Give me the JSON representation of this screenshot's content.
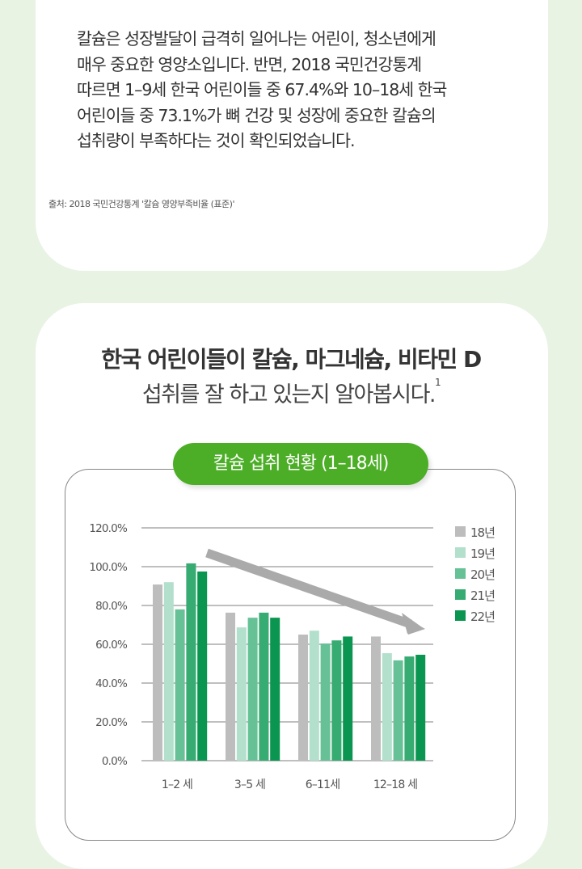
{
  "intro": {
    "lines": [
      "칼슘은 성장발달이 급격히 일어나는 어린이, 청소년에게",
      "매우 중요한 영양소입니다. 반면, 2018 국민건강통계",
      "따르면 1–9세 한국 어린이들 중 67.4%와 10–18세 한국",
      "어린이들 중 73.1%가 뼈 건강 및 성장에 중요한 칼슘의",
      "섭취량이 부족하다는 것이 확인되었습니다."
    ],
    "source": "출처: 2018 국민건강통계 '칼슘 영양부족비율 (표준)'"
  },
  "section": {
    "title_line1": "한국 어린이들이 칼슘, 마그네슘, 비타민 D",
    "title_line2": "섭취를 잘 하고 있는지 알아봅시다.",
    "footnote": "1"
  },
  "chart_data": {
    "type": "bar",
    "title": "칼슘 섭취 현황 (1–18세)",
    "categories": [
      "1–2 세",
      "3–5 세",
      "6–11세",
      "12–18 세"
    ],
    "ylim": [
      0,
      120
    ],
    "yticks": [
      "0.0%",
      "20.0%",
      "40.0%",
      "60.0%",
      "80.0%",
      "100.0%",
      "120.0%"
    ],
    "grid": true,
    "legend_position": "right",
    "annotation": "downward trend arrow",
    "series": [
      {
        "name": "18년",
        "color": "#bdbdbd",
        "values": [
          90.8,
          76.3,
          65.0,
          64.0
        ]
      },
      {
        "name": "19년",
        "color": "#b2e0cc",
        "values": [
          92.0,
          68.7,
          67.0,
          55.4
        ]
      },
      {
        "name": "20년",
        "color": "#66c296",
        "values": [
          78.0,
          73.7,
          60.4,
          51.7
        ]
      },
      {
        "name": "21년",
        "color": "#36ab72",
        "values": [
          101.7,
          76.3,
          62.0,
          53.7
        ]
      },
      {
        "name": "22년",
        "color": "#0a9650",
        "values": [
          97.5,
          73.7,
          64.0,
          54.6
        ]
      }
    ]
  }
}
